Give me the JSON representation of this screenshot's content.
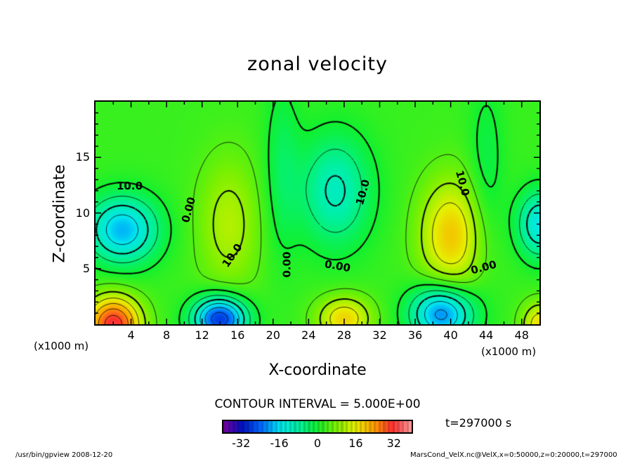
{
  "chart_data": {
    "type": "heatmap",
    "subtype": "filled-contour",
    "title": "zonal velocity",
    "xlabel": "X-coordinate",
    "ylabel": "Z-coordinate",
    "x_unit": "(x1000 m)",
    "y_unit": "(x1000 m)",
    "xlim": [
      0,
      50
    ],
    "ylim": [
      0,
      20
    ],
    "x_ticks": [
      4,
      8,
      12,
      16,
      20,
      24,
      28,
      32,
      36,
      40,
      44,
      48
    ],
    "y_ticks": [
      5,
      10,
      15
    ],
    "contour_interval_text": "CONTOUR INTERVAL = 5.000E+00",
    "contour_interval": 5,
    "contour_labels": [
      "10.0",
      "0.00",
      "10.0",
      "0.00",
      "10.0",
      "0.00",
      "10.0",
      "0.00"
    ],
    "colorbar": {
      "range": [
        -40,
        40
      ],
      "ticks": [
        "-32",
        "-16",
        "0",
        "16",
        "32"
      ],
      "tick_values": [
        -32,
        -16,
        0,
        16,
        32
      ]
    },
    "colormap": [
      [
        -40,
        "#7a00a0"
      ],
      [
        -32,
        "#0010c0"
      ],
      [
        -24,
        "#0068ff"
      ],
      [
        -16,
        "#00e6f0"
      ],
      [
        -8,
        "#00f0a0"
      ],
      [
        0,
        "#10f030"
      ],
      [
        8,
        "#7cf000"
      ],
      [
        16,
        "#e6f000"
      ],
      [
        24,
        "#ffa000"
      ],
      [
        32,
        "#ff3030"
      ],
      [
        40,
        "#ff9a9a"
      ]
    ],
    "field_model": {
      "baseline": 3,
      "blobs": [
        {
          "x": 3,
          "z": 8.5,
          "amp": -22,
          "sx": 4,
          "sz": 3
        },
        {
          "x": 2,
          "z": 0,
          "amp": 30,
          "sx": 3,
          "sz": 2.5
        },
        {
          "x": 15,
          "z": 9,
          "amp": 9,
          "sx": 3.5,
          "sz": 6
        },
        {
          "x": 14,
          "z": 0.5,
          "amp": -32,
          "sx": 3,
          "sz": 2
        },
        {
          "x": 27,
          "z": 12,
          "amp": -14,
          "sx": 4,
          "sz": 5
        },
        {
          "x": 28,
          "z": 0.5,
          "amp": 16,
          "sx": 3,
          "sz": 2
        },
        {
          "x": 40,
          "z": 8,
          "amp": 17,
          "sx": 3.5,
          "sz": 5
        },
        {
          "x": 39,
          "z": 1,
          "amp": -26,
          "sx": 3.5,
          "sz": 2.5
        },
        {
          "x": 50,
          "z": 9,
          "amp": -18,
          "sx": 2.5,
          "sz": 3
        },
        {
          "x": 50,
          "z": 0,
          "amp": 15,
          "sx": 2,
          "sz": 2
        },
        {
          "x": 21,
          "z": 14,
          "amp": -6,
          "sx": 2,
          "sz": 8
        },
        {
          "x": 44,
          "z": 14,
          "amp": -5,
          "sx": 2,
          "sz": 8
        }
      ]
    }
  },
  "time_label": "t=297000 s",
  "footer_left": "/usr/bin/gpview  2008-12-20",
  "footer_right": "MarsCond_VelX.nc@VelX,x=0:50000,z=0:20000,t=297000"
}
